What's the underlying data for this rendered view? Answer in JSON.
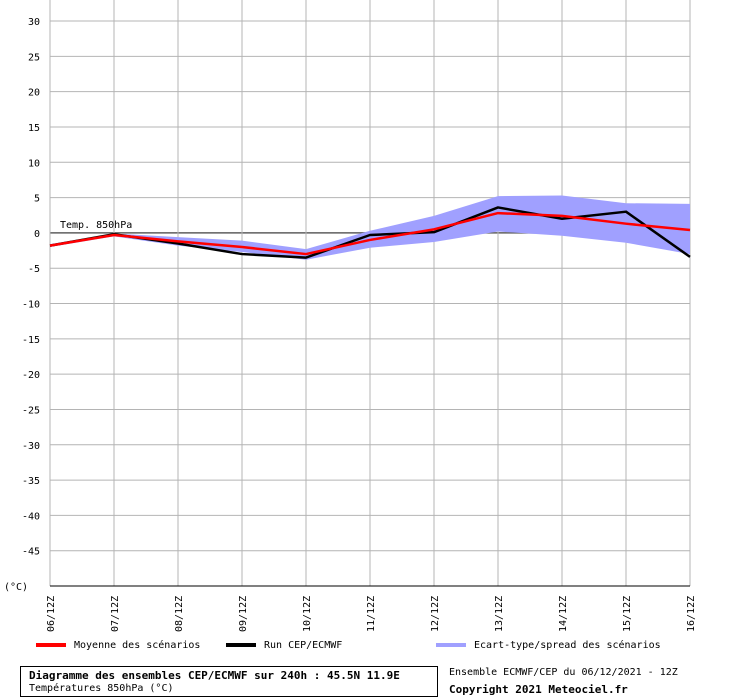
{
  "chart_data": {
    "type": "line",
    "ylim": [
      -50,
      30
    ],
    "yticks": [
      30,
      25,
      20,
      15,
      10,
      5,
      0,
      -5,
      -10,
      -15,
      -20,
      -25,
      -30,
      -35,
      -40,
      -45
    ],
    "y_unit_label": "(°C)",
    "categories": [
      "06/12Z",
      "07/12Z",
      "08/12Z",
      "09/12Z",
      "10/12Z",
      "11/12Z",
      "12/12Z",
      "13/12Z",
      "14/12Z",
      "15/12Z",
      "16/12Z"
    ],
    "annotation": "Temp. 850hPa",
    "series": [
      {
        "name": "Moyenne des scénarios",
        "color": "#ff0000",
        "values": [
          -1.8,
          -0.3,
          -1.2,
          -2.0,
          -3.0,
          -1.0,
          0.5,
          2.8,
          2.4,
          1.3,
          0.4
        ]
      },
      {
        "name": "Run CEP/ECMWF",
        "color": "#000000",
        "values": [
          -1.8,
          -0.2,
          -1.5,
          -3.0,
          -3.5,
          -0.3,
          0.1,
          3.6,
          2.0,
          3.0,
          -3.4
        ]
      }
    ],
    "spread": {
      "name": "Ecart-type/spread des scénarios",
      "color": "#a0a0ff",
      "upper": [
        -1.6,
        -0.1,
        -0.6,
        -1.1,
        -2.3,
        0.3,
        2.4,
        5.2,
        5.3,
        4.2,
        4.1
      ],
      "lower": [
        -2.0,
        -0.5,
        -1.8,
        -2.7,
        -3.8,
        -2.1,
        -1.3,
        0.2,
        -0.4,
        -1.4,
        -3.0
      ]
    }
  },
  "legend": {
    "mean_label": "Moyenne des scénarios",
    "run_label": "Run CEP/ECMWF",
    "spread_label": "Ecart-type/spread des scénarios"
  },
  "title_box": {
    "main": "Diagramme des ensembles CEP/ECMWF sur 240h : 45.5N 11.9E",
    "sub": "Températures 850hPa (°C)"
  },
  "footer": {
    "info": "Ensemble ECMWF/CEP du 06/12/2021 - 12Z",
    "copyright": "Copyright 2021 Meteociel.fr"
  }
}
